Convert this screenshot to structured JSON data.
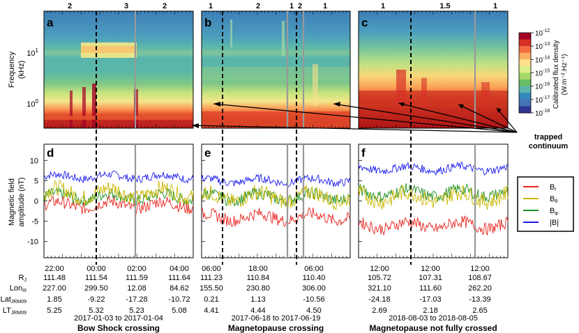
{
  "panels": [
    {
      "id": "a",
      "lower_id": "d",
      "regions": [
        "2",
        "3",
        "2"
      ],
      "xticks": [
        "22:00",
        "00:00",
        "02:00",
        "04:00"
      ],
      "rj": [
        "111.48",
        "111.54",
        "111.59",
        "111.64"
      ],
      "lon": [
        "227.00",
        "299.50",
        "12.08",
        "84.62"
      ],
      "lat": [
        "1.85",
        "-9.22",
        "-17.28",
        "-10.72"
      ],
      "lt": [
        "5.25",
        "5.32",
        "5.23",
        "5.08"
      ],
      "date_range": "2017-01-03 to 2017-01-04",
      "event": "Bow Shock crossing"
    },
    {
      "id": "b",
      "lower_id": "e",
      "regions": [
        "1",
        "2",
        "1",
        "2",
        "1"
      ],
      "xticks": [
        "06:00",
        "18:00",
        "06:00"
      ],
      "rj": [
        "111.23",
        "110.84",
        "110.40"
      ],
      "lon": [
        "155.50",
        "230.80",
        "306.00"
      ],
      "lat": [
        "0.21",
        "1.13",
        "-10.56"
      ],
      "lt": [
        "4.41",
        "4.44",
        "4.50"
      ],
      "date_range": "2017-06-18 to 2017-06-19",
      "event": "Magnetopause crossing"
    },
    {
      "id": "c",
      "lower_id": "f",
      "regions": [
        "1",
        "1.5",
        "1"
      ],
      "xticks": [
        "12:00",
        "12:00",
        "12:00"
      ],
      "rj": [
        "105.72",
        "107.31",
        "108.67"
      ],
      "lon": [
        "321.10",
        "111.60",
        "262.20"
      ],
      "lat": [
        "-24.18",
        "-17.03",
        "-13.39"
      ],
      "lt": [
        "2.69",
        "2.18",
        "2.65"
      ],
      "date_range": "2018-08-03 to 2018-08-05",
      "event": "Magnetopause not fully crossed"
    }
  ],
  "row_labels": {
    "rj_main": "R",
    "rj_sub": "J",
    "lon_main": "Lon",
    "lon_sub": "III",
    "lat_main": "Lat",
    "lat_sub": "JRM09",
    "lt_main": "LT",
    "lt_sub": "JRM09"
  },
  "spectrogram": {
    "ylabel_line1": "Frequency",
    "ylabel_line2": "(kHz)",
    "yticks": [
      {
        "base": "10",
        "exp": "1"
      },
      {
        "base": "10",
        "exp": "0"
      }
    ]
  },
  "mag": {
    "ylabel_line1": "Magnetic field",
    "ylabel_line2": "amplitude (nT)",
    "yticks": [
      "10",
      "5",
      "0",
      "-5",
      "-10"
    ],
    "ylim": [
      -14,
      14
    ]
  },
  "colorbar": {
    "label_line1": "Calibrated flux density",
    "label_line2": "(W.m⁻².Hz⁻¹)",
    "ticks": [
      {
        "base": "10",
        "exp": "-12"
      },
      {
        "base": "10",
        "exp": "-13"
      },
      {
        "base": "10",
        "exp": "-14"
      },
      {
        "base": "10",
        "exp": "-15"
      },
      {
        "base": "10",
        "exp": "-16"
      },
      {
        "base": "10",
        "exp": "-17"
      },
      {
        "base": "10",
        "exp": "-18"
      }
    ],
    "colors": [
      "#a50026",
      "#d73027",
      "#f46d43",
      "#fdae61",
      "#fee08b",
      "#d9ef8b",
      "#a6d96a",
      "#66bd63",
      "#5ab4ac",
      "#3288bd",
      "#4575b4",
      "#313695"
    ]
  },
  "annotation": {
    "line1": "trapped",
    "line2": "continuum"
  },
  "legend": [
    {
      "main": "B",
      "sub": "r",
      "color": "#e8231d"
    },
    {
      "main": "B",
      "sub": "θ",
      "color": "#c9b700"
    },
    {
      "main": "B",
      "sub": "φ",
      "color": "#1e8f1e"
    },
    {
      "main": "|B|",
      "sub": "",
      "color": "#1a1aee"
    }
  ]
}
